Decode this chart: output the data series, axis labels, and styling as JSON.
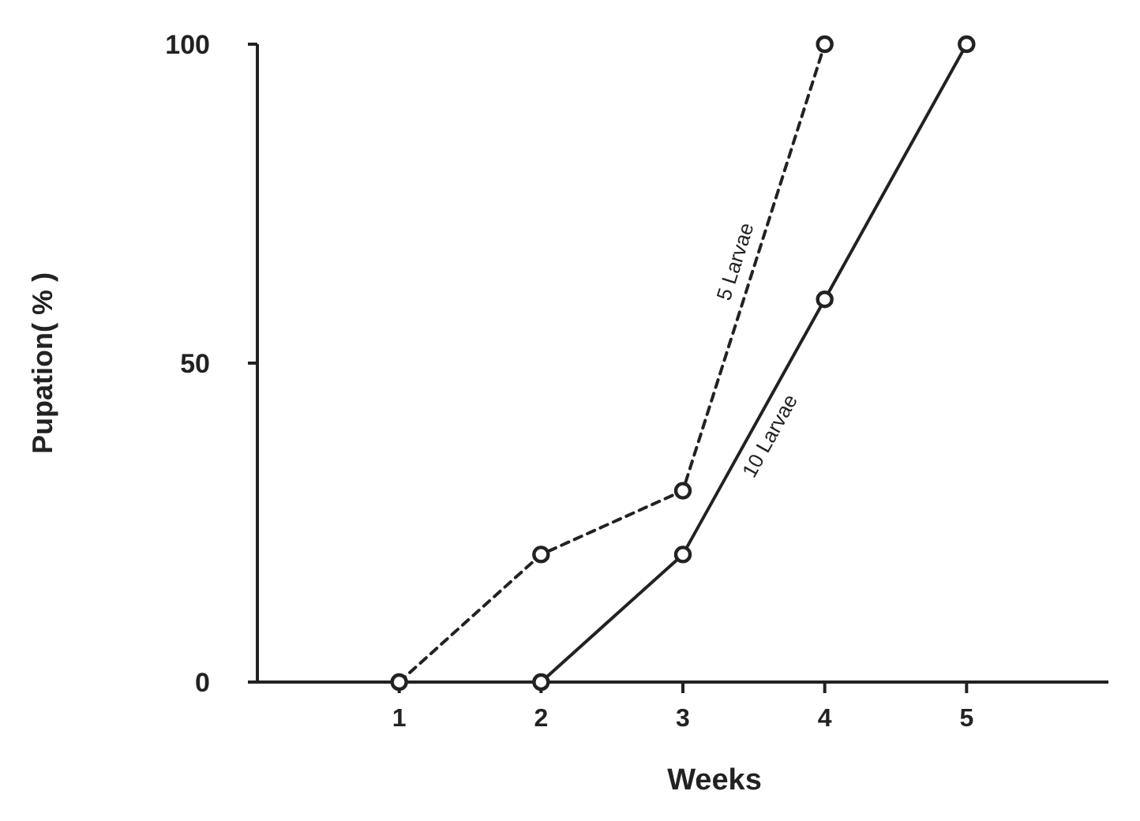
{
  "chart_data": {
    "type": "line",
    "xlabel": "Weeks",
    "ylabel": "Pupation( % )",
    "xlim": [
      0,
      6
    ],
    "xticks": [
      1,
      2,
      3,
      4,
      5
    ],
    "ylim": [
      0,
      100
    ],
    "yticks": [
      0,
      50,
      100
    ],
    "grid": false,
    "legend": false,
    "marker": "circle",
    "series": [
      {
        "name": "5 Larvae",
        "color": "#222222",
        "line_style": "dashed",
        "x": [
          1,
          2,
          3,
          4
        ],
        "values": [
          0,
          20,
          30,
          100
        ]
      },
      {
        "name": "10 Larvae",
        "color": "#222222",
        "line_style": "solid",
        "x": [
          2,
          3,
          4,
          5
        ],
        "values": [
          0,
          20,
          60,
          100
        ]
      }
    ]
  }
}
